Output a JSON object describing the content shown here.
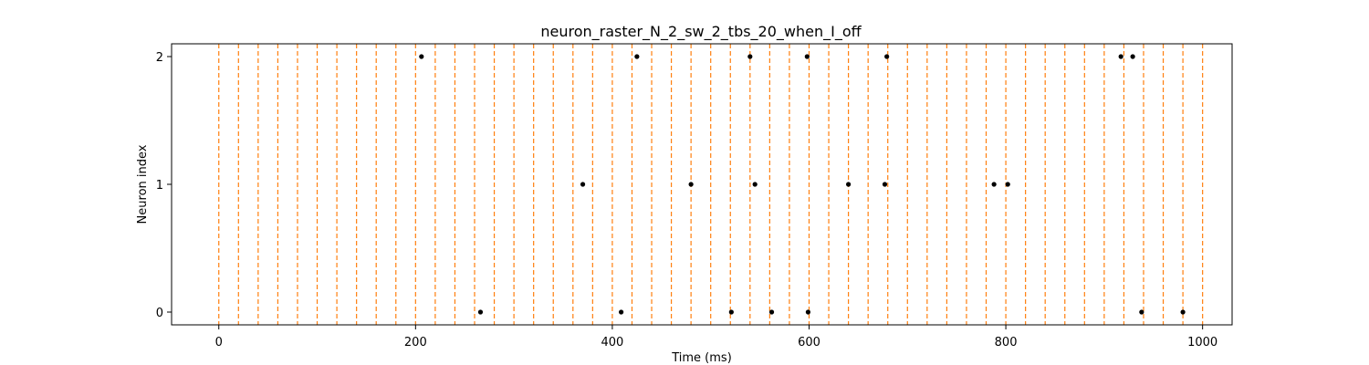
{
  "chart_data": {
    "type": "scatter",
    "title": "neuron_raster_N_2_sw_2_tbs_20_when_I_off",
    "xlabel": "Time (ms)",
    "ylabel": "Neuron index",
    "xlim": [
      -48,
      1030
    ],
    "ylim": [
      -0.1,
      2.1
    ],
    "xticks": [
      0,
      200,
      400,
      600,
      800,
      1000
    ],
    "yticks": [
      0,
      1,
      2
    ],
    "xtick_labels": [
      "0",
      "200",
      "400",
      "600",
      "800",
      "1000"
    ],
    "ytick_labels": [
      "0",
      "1",
      "2"
    ],
    "grid": false,
    "legend": "none",
    "vlines": {
      "style": "dashed",
      "color": "#ff7f0e",
      "x": [
        0,
        20,
        40,
        60,
        80,
        100,
        120,
        140,
        160,
        180,
        200,
        220,
        240,
        260,
        280,
        300,
        320,
        340,
        360,
        380,
        400,
        420,
        440,
        460,
        480,
        500,
        520,
        540,
        560,
        580,
        600,
        620,
        640,
        660,
        680,
        700,
        720,
        740,
        760,
        780,
        800,
        820,
        840,
        860,
        880,
        900,
        920,
        940,
        960,
        980,
        1000
      ]
    },
    "marker_color": "#000000",
    "series": [
      {
        "neuron": 0,
        "x": [
          266,
          409,
          521,
          562,
          599,
          938,
          980
        ],
        "y": [
          0,
          0,
          0,
          0,
          0,
          0,
          0
        ]
      },
      {
        "neuron": 1,
        "x": [
          370,
          480,
          545,
          640,
          677,
          788,
          802
        ],
        "y": [
          1,
          1,
          1,
          1,
          1,
          1,
          1
        ]
      },
      {
        "neuron": 2,
        "x": [
          206,
          425,
          540,
          598,
          679,
          917,
          929
        ],
        "y": [
          2,
          2,
          2,
          2,
          2,
          2,
          2
        ]
      }
    ]
  }
}
